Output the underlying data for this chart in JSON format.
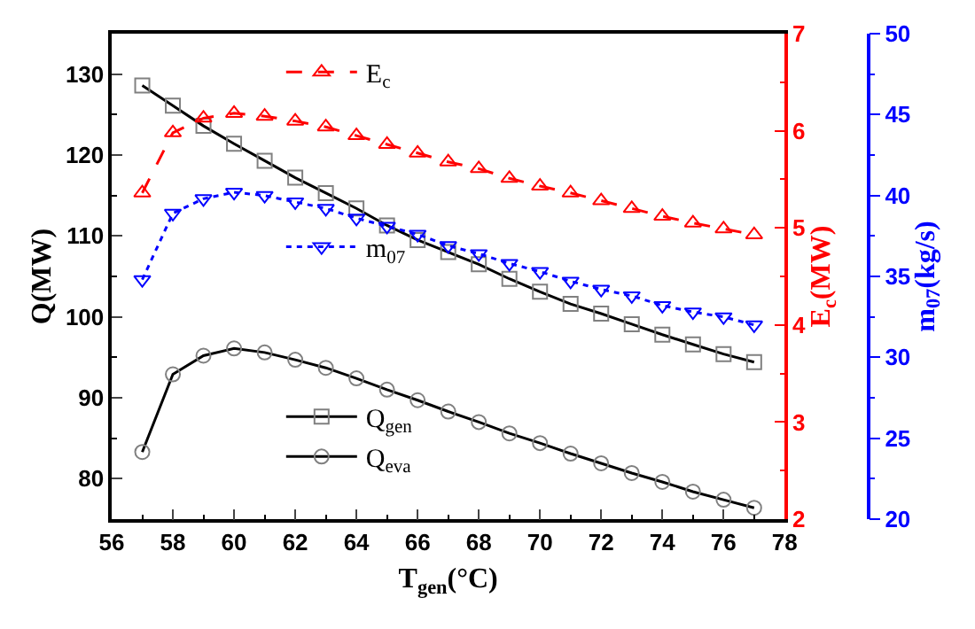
{
  "chart_data": {
    "type": "line",
    "xlabel": "T$_{gen}$(°C)",
    "ylabel": "Q(MW)",
    "y2label": "E$_{c}$(MW)",
    "y3label": "m$_{07}$(kg/s)",
    "x": [
      57,
      58,
      59,
      60,
      61,
      62,
      63,
      64,
      65,
      66,
      67,
      68,
      69,
      70,
      71,
      72,
      73,
      74,
      75,
      76,
      77
    ],
    "series": [
      {
        "name": "Q$_{gen}$",
        "color": "#000000",
        "marker": "square",
        "line_style": "solid",
        "values": [
          128.6,
          126.1,
          123.6,
          121.4,
          119.3,
          117.2,
          115.3,
          113.4,
          111.3,
          109.5,
          108.0,
          106.5,
          104.7,
          103.1,
          101.6,
          100.4,
          99.1,
          97.8,
          96.6,
          95.4,
          94.4
        ]
      },
      {
        "name": "Q$_{eva}$",
        "color": "#000000",
        "marker": "circle",
        "line_style": "solid",
        "values": [
          83.3,
          92.9,
          95.2,
          96.1,
          95.6,
          94.7,
          93.7,
          92.4,
          91.0,
          89.7,
          88.3,
          87.0,
          85.6,
          84.4,
          83.1,
          81.9,
          80.7,
          79.6,
          78.4,
          77.4,
          76.4
        ]
      },
      {
        "name": "E$_{c}$",
        "color": "#ff0000",
        "marker": "triangle",
        "line_style": "dashed",
        "axis": "y2",
        "values": [
          5.36,
          5.98,
          6.13,
          6.18,
          6.15,
          6.1,
          6.04,
          5.95,
          5.86,
          5.77,
          5.68,
          5.61,
          5.51,
          5.43,
          5.36,
          5.28,
          5.2,
          5.12,
          5.05,
          4.99,
          4.93
        ]
      },
      {
        "name": "m$_{07}$",
        "color": "#0000ff",
        "marker": "triangle-down",
        "line_style": "dotted",
        "axis": "y3",
        "values": [
          34.8,
          38.9,
          39.8,
          40.2,
          40.0,
          39.6,
          39.2,
          38.6,
          38.1,
          37.6,
          36.9,
          36.4,
          35.8,
          35.3,
          34.7,
          34.2,
          33.8,
          33.2,
          32.8,
          32.5,
          32.0
        ]
      }
    ],
    "xlim": [
      56,
      78
    ],
    "xticks": [
      56,
      58,
      60,
      62,
      64,
      66,
      68,
      70,
      72,
      74,
      76,
      78
    ],
    "ylim": [
      75,
      135
    ],
    "yticks": [
      80,
      90,
      100,
      110,
      120,
      130
    ],
    "y2lim": [
      2,
      7
    ],
    "y2ticks": [
      2,
      3,
      4,
      5,
      6,
      7
    ],
    "y3lim": [
      20,
      50
    ],
    "y3ticks": [
      20,
      25,
      30,
      35,
      40,
      45,
      50
    ],
    "legend": "left"
  }
}
